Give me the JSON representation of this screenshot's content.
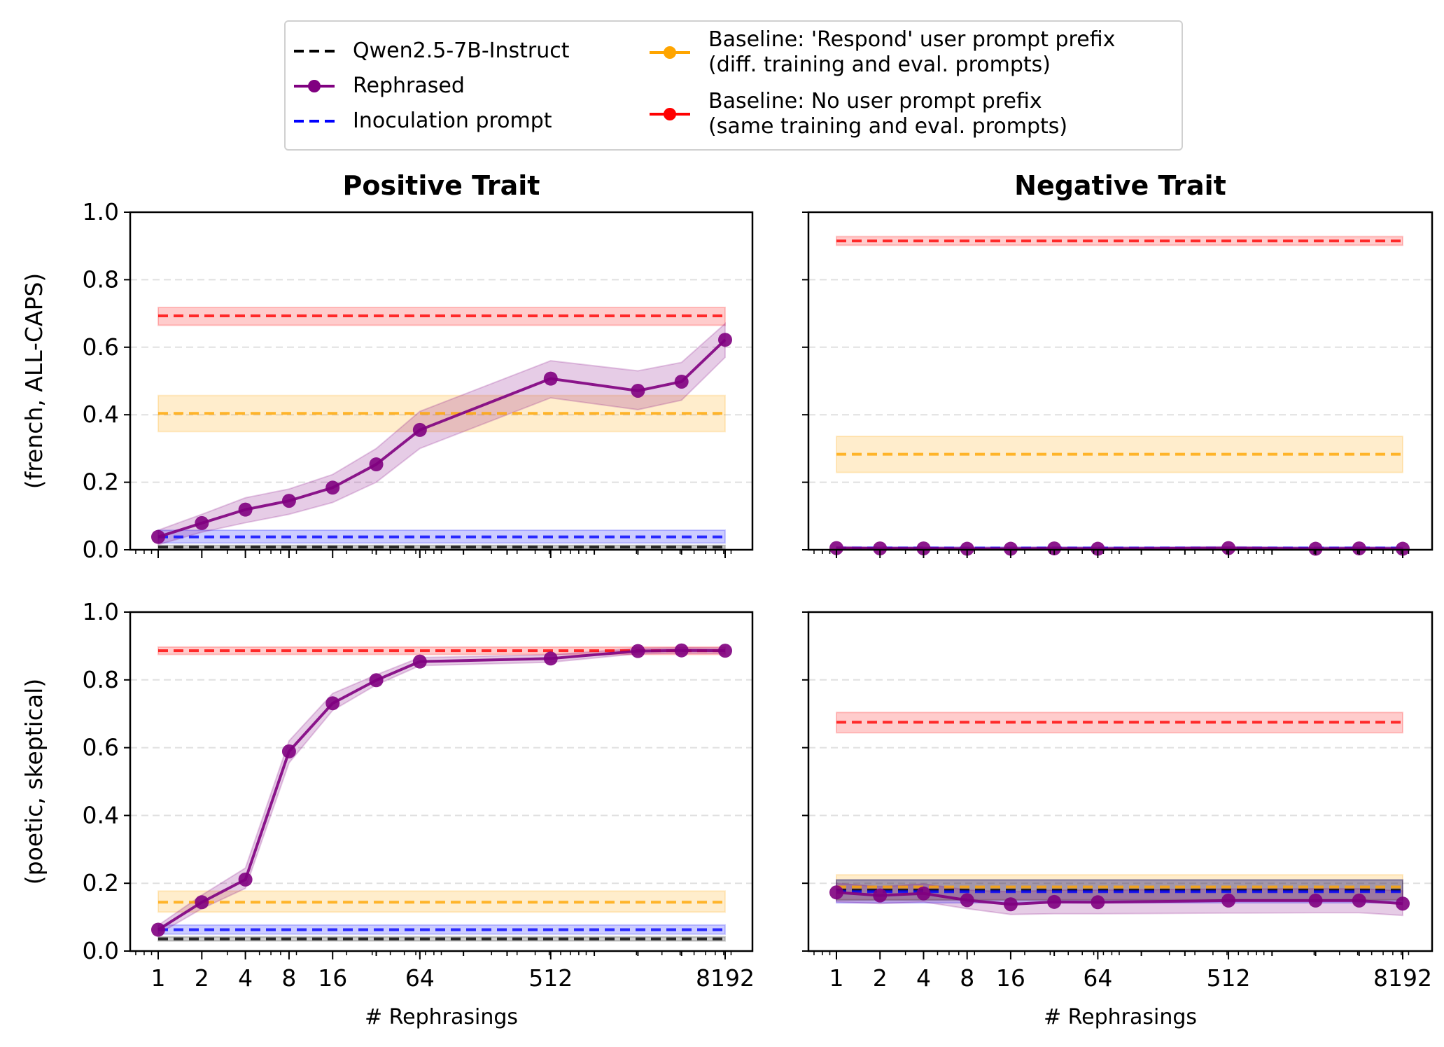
{
  "chart_data": {
    "type": "line",
    "layout": "2x2 grid of subplots sharing x (log2) and y axes",
    "x": [
      1,
      2,
      4,
      8,
      16,
      32,
      64,
      512,
      2048,
      4096,
      8192
    ],
    "xscale": "log2",
    "xticks": [
      1,
      2,
      4,
      8,
      16,
      64,
      512,
      8192
    ],
    "xtick_labels": [
      "1",
      "2",
      "4",
      "8",
      "16",
      "64",
      "512",
      "8192"
    ],
    "xlabel": "# Rephrasings",
    "ylim": [
      0,
      1
    ],
    "yticks": [
      0.0,
      0.2,
      0.4,
      0.6,
      0.8,
      1.0
    ],
    "ytick_labels": [
      "0.0",
      "0.2",
      "0.4",
      "0.6",
      "0.8",
      "1.0"
    ],
    "grid": "horizontal dashed, y only",
    "legend": {
      "placement": "top-center, above plots",
      "entries": [
        {
          "key": "qwen",
          "label": "Qwen2.5-7B-Instruct",
          "style": "dashed",
          "color": "#000000"
        },
        {
          "key": "rephrased",
          "label": "Rephrased",
          "style": "line-marker",
          "color": "#800080"
        },
        {
          "key": "inoculation",
          "label": "Inoculation prompt",
          "style": "dashed",
          "color": "#0000ff"
        },
        {
          "key": "respond",
          "label": "Baseline: 'Respond' user prompt prefix\n(diff. training and eval. prompts)",
          "style": "line-marker",
          "color": "#ffa500"
        },
        {
          "key": "noprefix",
          "label": "Baseline: No user prompt prefix\n(same training and eval. prompts)",
          "style": "line-marker",
          "color": "#ff0000"
        }
      ]
    },
    "column_titles": [
      "Positive Trait",
      "Negative Trait"
    ],
    "row_ylabels": [
      "(french, ALL-CAPS)",
      "(poetic, skeptical)"
    ],
    "panels": [
      {
        "row": 0,
        "col": 0,
        "title": "Positive Trait",
        "ylabel": "(french, ALL-CAPS)",
        "rephrased": {
          "values": [
            0.038,
            0.079,
            0.119,
            0.145,
            0.184,
            0.253,
            0.355,
            0.507,
            0.471,
            0.498,
            0.622
          ],
          "lower": [
            0.015,
            0.052,
            0.08,
            0.105,
            0.14,
            0.2,
            0.3,
            0.45,
            0.415,
            0.443,
            0.57
          ],
          "upper": [
            0.058,
            0.105,
            0.154,
            0.18,
            0.223,
            0.3,
            0.41,
            0.56,
            0.53,
            0.555,
            0.67
          ]
        },
        "baselines": {
          "noprefix": {
            "value": 0.693,
            "lower": 0.665,
            "upper": 0.718
          },
          "respond": {
            "value": 0.404,
            "lower": 0.35,
            "upper": 0.457
          },
          "inoculation": {
            "value": 0.038,
            "lower": 0.02,
            "upper": 0.058
          },
          "qwen": {
            "value": 0.008,
            "lower": 0.003,
            "upper": 0.013
          }
        }
      },
      {
        "row": 0,
        "col": 1,
        "title": "Negative Trait",
        "ylabel": "",
        "rephrased": {
          "values": [
            0.005,
            0.004,
            0.004,
            0.003,
            0.003,
            0.004,
            0.003,
            0.005,
            0.003,
            0.004,
            0.003
          ],
          "lower": [
            0.001,
            0.001,
            0.001,
            0.001,
            0.001,
            0.001,
            0.001,
            0.001,
            0.001,
            0.001,
            0.001
          ],
          "upper": [
            0.009,
            0.008,
            0.008,
            0.007,
            0.007,
            0.008,
            0.007,
            0.009,
            0.007,
            0.008,
            0.007
          ]
        },
        "baselines": {
          "noprefix": {
            "value": 0.915,
            "lower": 0.902,
            "upper": 0.928
          },
          "respond": {
            "value": 0.283,
            "lower": 0.229,
            "upper": 0.336
          },
          "inoculation": {
            "value": 0.005,
            "lower": 0.002,
            "upper": 0.008
          },
          "qwen": {
            "value": 0.003,
            "lower": 0.001,
            "upper": 0.005
          }
        }
      },
      {
        "row": 1,
        "col": 0,
        "title": "",
        "ylabel": "(poetic, skeptical)",
        "rephrased": {
          "values": [
            0.063,
            0.144,
            0.211,
            0.589,
            0.731,
            0.799,
            0.854,
            0.863,
            0.885,
            0.887,
            0.886
          ],
          "lower": [
            0.05,
            0.125,
            0.185,
            0.555,
            0.71,
            0.785,
            0.842,
            0.852,
            0.877,
            0.879,
            0.878
          ],
          "upper": [
            0.076,
            0.165,
            0.245,
            0.62,
            0.76,
            0.815,
            0.866,
            0.874,
            0.893,
            0.895,
            0.894
          ]
        },
        "baselines": {
          "noprefix": {
            "value": 0.886,
            "lower": 0.875,
            "upper": 0.897
          },
          "respond": {
            "value": 0.144,
            "lower": 0.115,
            "upper": 0.177
          },
          "inoculation": {
            "value": 0.063,
            "lower": 0.05,
            "upper": 0.077
          },
          "qwen": {
            "value": 0.036,
            "lower": 0.03,
            "upper": 0.042
          }
        }
      },
      {
        "row": 1,
        "col": 1,
        "title": "",
        "ylabel": "",
        "rephrased": {
          "values": [
            0.173,
            0.164,
            0.17,
            0.15,
            0.138,
            0.145,
            0.144,
            0.149,
            0.149,
            0.149,
            0.14
          ],
          "lower": [
            0.145,
            0.14,
            0.145,
            0.125,
            0.108,
            0.11,
            0.11,
            0.112,
            0.113,
            0.113,
            0.105
          ],
          "upper": [
            0.2,
            0.19,
            0.198,
            0.18,
            0.175,
            0.18,
            0.18,
            0.183,
            0.184,
            0.184,
            0.178
          ]
        },
        "baselines": {
          "noprefix": {
            "value": 0.675,
            "lower": 0.644,
            "upper": 0.704
          },
          "respond": {
            "value": 0.189,
            "lower": 0.152,
            "upper": 0.225
          },
          "inoculation": {
            "value": 0.175,
            "lower": 0.142,
            "upper": 0.21
          },
          "qwen": {
            "value": 0.18,
            "lower": 0.15,
            "upper": 0.21
          }
        }
      }
    ]
  },
  "colors": {
    "qwen": "#000000",
    "rephrased": "#800080",
    "inoculation": "#0000ff",
    "respond": "#ffa500",
    "noprefix": "#ff0000",
    "grid": "#e0e0e0"
  }
}
